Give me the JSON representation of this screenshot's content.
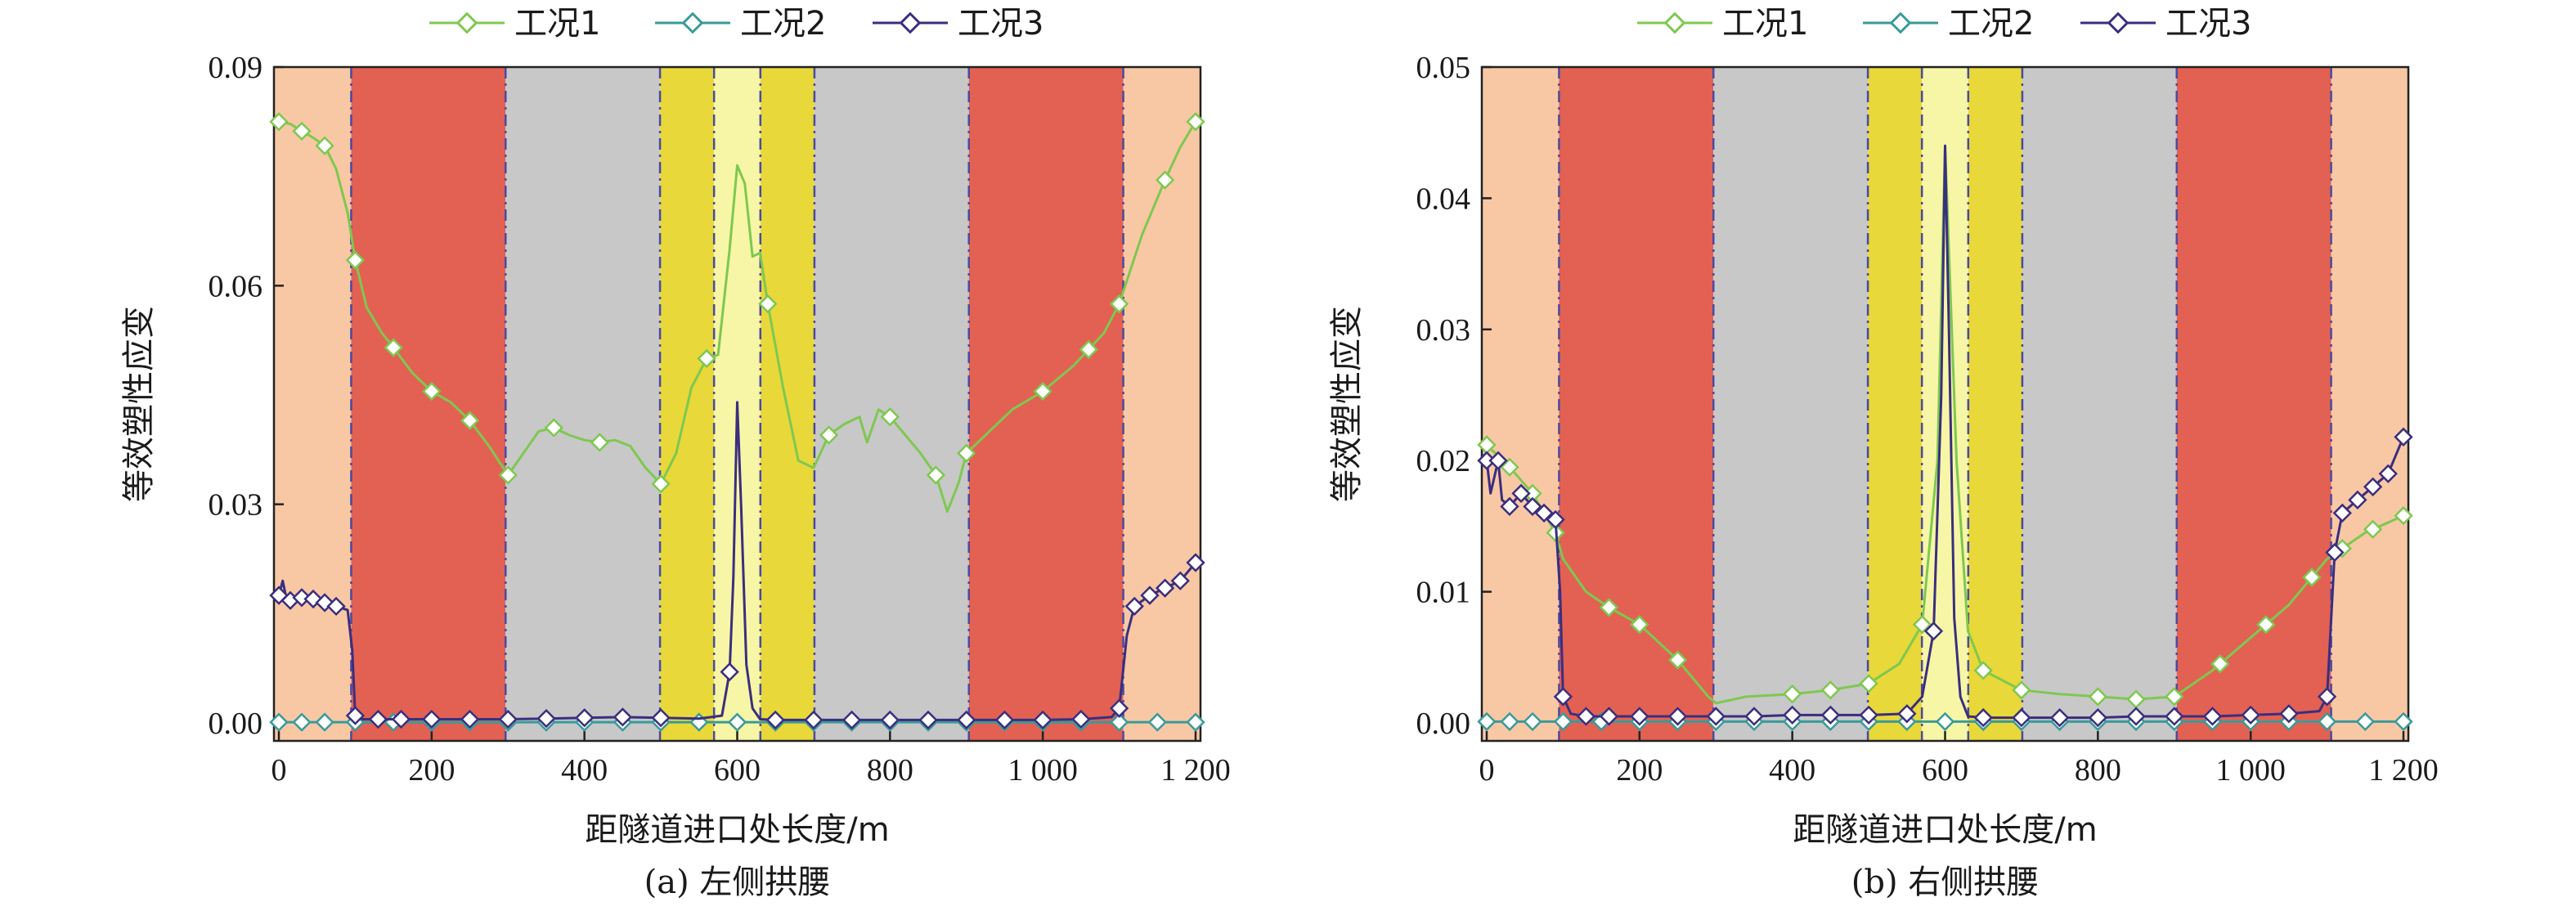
{
  "colors": {
    "tunnel_orange": "#f8c8a5",
    "tunnel_red": "#e26153",
    "tunnel_gray": "#c8c8c8",
    "tunnel_yellow": "#e8d83a",
    "tunnel_lightyellow": "#f6f6a6",
    "boundary_line": "#4a4aa0",
    "series_1": "#7ec850",
    "series_2": "#3a9a9a",
    "series_3": "#3b2e7e"
  },
  "chart_data": [
    {
      "type": "line",
      "title": "",
      "caption": "(a) 左侧拱腰",
      "xlabel": "距隧道进口处长度/m",
      "ylabel": "等效塑性应变",
      "xlim": [
        0,
        1200
      ],
      "ylim": [
        0,
        0.09
      ],
      "xticks": [
        0,
        200,
        400,
        600,
        800,
        1000,
        1200
      ],
      "xtick_labels": [
        "0",
        "200",
        "400",
        "600",
        "800",
        "1 000",
        "1 200"
      ],
      "yticks": [
        0,
        0.03,
        0.06,
        0.09
      ],
      "ytick_labels": [
        "0.00",
        "0.03",
        "0.06",
        "0.09"
      ],
      "legend": "top",
      "grid": false,
      "zones": [
        {
          "x0": 0,
          "x1": 100,
          "color": "tunnel_orange"
        },
        {
          "x0": 100,
          "x1": 300,
          "color": "tunnel_red"
        },
        {
          "x0": 300,
          "x1": 500,
          "color": "tunnel_gray"
        },
        {
          "x0": 500,
          "x1": 570,
          "color": "tunnel_yellow"
        },
        {
          "x0": 570,
          "x1": 630,
          "color": "tunnel_lightyellow"
        },
        {
          "x0": 630,
          "x1": 700,
          "color": "tunnel_yellow"
        },
        {
          "x0": 700,
          "x1": 900,
          "color": "tunnel_gray"
        },
        {
          "x0": 900,
          "x1": 1100,
          "color": "tunnel_red"
        },
        {
          "x0": 1100,
          "x1": 1200,
          "color": "tunnel_orange"
        }
      ],
      "boundaries": [
        100,
        300,
        500,
        570,
        630,
        700,
        900,
        1100
      ],
      "series": [
        {
          "name": "工况1",
          "color": "series_1",
          "x": [
            0,
            15,
            30,
            45,
            60,
            75,
            90,
            100,
            115,
            135,
            150,
            175,
            200,
            225,
            250,
            275,
            300,
            320,
            340,
            360,
            380,
            400,
            420,
            440,
            460,
            480,
            500,
            520,
            540,
            560,
            575,
            590,
            600,
            610,
            620,
            630,
            640,
            660,
            680,
            700,
            720,
            740,
            760,
            770,
            785,
            800,
            820,
            840,
            860,
            875,
            890,
            900,
            930,
            960,
            1000,
            1040,
            1080,
            1100,
            1130,
            1160,
            1180,
            1200
          ],
          "y": [
            0.0825,
            0.0822,
            0.0812,
            0.0803,
            0.0792,
            0.076,
            0.07,
            0.0635,
            0.057,
            0.0535,
            0.0515,
            0.048,
            0.0455,
            0.044,
            0.0415,
            0.038,
            0.034,
            0.037,
            0.04,
            0.0405,
            0.0395,
            0.0388,
            0.0385,
            0.0388,
            0.038,
            0.035,
            0.0328,
            0.037,
            0.046,
            0.05,
            0.0505,
            0.065,
            0.0765,
            0.074,
            0.064,
            0.0645,
            0.0575,
            0.046,
            0.036,
            0.035,
            0.0395,
            0.041,
            0.042,
            0.0385,
            0.043,
            0.042,
            0.0395,
            0.037,
            0.034,
            0.029,
            0.033,
            0.037,
            0.04,
            0.043,
            0.0455,
            0.049,
            0.0535,
            0.0575,
            0.067,
            0.0745,
            0.079,
            0.0825
          ],
          "markers_x": [
            0,
            30,
            60,
            100,
            150,
            200,
            250,
            300,
            360,
            420,
            500,
            560,
            640,
            720,
            800,
            860,
            900,
            1000,
            1060,
            1100,
            1160,
            1200
          ]
        },
        {
          "name": "工况2",
          "color": "series_2",
          "x": [
            0,
            30,
            60,
            100,
            150,
            200,
            250,
            300,
            350,
            400,
            450,
            500,
            550,
            600,
            650,
            700,
            750,
            800,
            850,
            900,
            950,
            1000,
            1050,
            1100,
            1150,
            1200
          ],
          "y": [
            0.0001,
            0.0001,
            0.0001,
            0.0001,
            0.0001,
            0.0001,
            0.0001,
            0.0001,
            0.0001,
            0.0001,
            0.0001,
            0.0001,
            0.0001,
            0.0001,
            0.0001,
            0.0001,
            0.0001,
            0.0001,
            0.0001,
            0.0001,
            0.0001,
            0.0001,
            0.0001,
            0.0001,
            0.0001,
            0.0001
          ],
          "markers_x": [
            0,
            30,
            60,
            100,
            150,
            200,
            250,
            300,
            350,
            400,
            450,
            500,
            550,
            600,
            650,
            700,
            750,
            800,
            850,
            900,
            950,
            1000,
            1050,
            1100,
            1150,
            1200
          ]
        },
        {
          "name": "工况3",
          "color": "series_3",
          "x": [
            0,
            5,
            10,
            15,
            20,
            30,
            45,
            60,
            75,
            90,
            96,
            100,
            110,
            130,
            150,
            175,
            200,
            250,
            300,
            350,
            400,
            450,
            500,
            550,
            580,
            590,
            595,
            600,
            605,
            612,
            620,
            630,
            650,
            700,
            750,
            800,
            850,
            900,
            950,
            1000,
            1050,
            1090,
            1100,
            1110,
            1120,
            1140,
            1160,
            1180,
            1200
          ],
          "y": [
            0.0175,
            0.0195,
            0.017,
            0.0168,
            0.0165,
            0.0172,
            0.017,
            0.0165,
            0.016,
            0.0155,
            0.01,
            0.001,
            0.0005,
            0.0005,
            0.0005,
            0.0005,
            0.0005,
            0.0005,
            0.0005,
            0.0006,
            0.0007,
            0.0008,
            0.0007,
            0.0006,
            0.001,
            0.007,
            0.02,
            0.044,
            0.03,
            0.008,
            0.002,
            0.0005,
            0.0004,
            0.0004,
            0.0004,
            0.0004,
            0.0004,
            0.0004,
            0.0004,
            0.0004,
            0.0005,
            0.0008,
            0.002,
            0.012,
            0.016,
            0.0175,
            0.0185,
            0.0195,
            0.022
          ],
          "markers_x": [
            0,
            15,
            30,
            45,
            60,
            75,
            100,
            130,
            160,
            200,
            250,
            300,
            350,
            400,
            450,
            500,
            590,
            650,
            700,
            750,
            800,
            850,
            900,
            950,
            1000,
            1050,
            1100,
            1120,
            1140,
            1160,
            1180,
            1200
          ]
        }
      ]
    },
    {
      "type": "line",
      "title": "",
      "caption": "(b) 右侧拱腰",
      "xlabel": "距隧道进口处长度/m",
      "ylabel": "等效塑性应变",
      "xlim": [
        0,
        1200
      ],
      "ylim": [
        0,
        0.05
      ],
      "xticks": [
        0,
        200,
        400,
        600,
        800,
        1000,
        1200
      ],
      "xtick_labels": [
        "0",
        "200",
        "400",
        "600",
        "800",
        "1 000",
        "1 200"
      ],
      "yticks": [
        0,
        0.01,
        0.02,
        0.03,
        0.04,
        0.05
      ],
      "ytick_labels": [
        "0.00",
        "0.01",
        "0.02",
        "0.03",
        "0.04",
        "0.05"
      ],
      "legend": "top",
      "grid": false,
      "zones": [
        {
          "x0": 0,
          "x1": 100,
          "color": "tunnel_orange"
        },
        {
          "x0": 100,
          "x1": 300,
          "color": "tunnel_red"
        },
        {
          "x0": 300,
          "x1": 500,
          "color": "tunnel_gray"
        },
        {
          "x0": 500,
          "x1": 570,
          "color": "tunnel_yellow"
        },
        {
          "x0": 570,
          "x1": 630,
          "color": "tunnel_lightyellow"
        },
        {
          "x0": 630,
          "x1": 700,
          "color": "tunnel_yellow"
        },
        {
          "x0": 700,
          "x1": 900,
          "color": "tunnel_gray"
        },
        {
          "x0": 900,
          "x1": 1100,
          "color": "tunnel_red"
        },
        {
          "x0": 1100,
          "x1": 1200,
          "color": "tunnel_orange"
        }
      ],
      "boundaries": [
        100,
        300,
        500,
        570,
        630,
        700,
        900,
        1100
      ],
      "series": [
        {
          "name": "工况1",
          "color": "series_1",
          "x": [
            0,
            30,
            60,
            90,
            100,
            130,
            160,
            200,
            250,
            290,
            300,
            340,
            400,
            450,
            500,
            540,
            570,
            590,
            600,
            615,
            630,
            650,
            700,
            750,
            800,
            850,
            900,
            950,
            1000,
            1050,
            1100,
            1150,
            1200
          ],
          "y": [
            0.0212,
            0.0195,
            0.0175,
            0.0145,
            0.0125,
            0.01,
            0.0088,
            0.0075,
            0.0048,
            0.002,
            0.0015,
            0.002,
            0.0022,
            0.0025,
            0.003,
            0.0045,
            0.0075,
            0.02,
            0.044,
            0.02,
            0.007,
            0.004,
            0.0025,
            0.0022,
            0.002,
            0.0018,
            0.002,
            0.004,
            0.0065,
            0.009,
            0.0125,
            0.0145,
            0.0158
          ],
          "markers_x": [
            0,
            30,
            60,
            90,
            160,
            200,
            250,
            400,
            450,
            500,
            570,
            650,
            700,
            800,
            850,
            900,
            960,
            1020,
            1080,
            1120,
            1160,
            1200
          ]
        },
        {
          "name": "工况2",
          "color": "series_2",
          "x": [
            0,
            30,
            60,
            100,
            150,
            200,
            250,
            300,
            350,
            400,
            450,
            500,
            550,
            600,
            650,
            700,
            750,
            800,
            850,
            900,
            950,
            1000,
            1050,
            1100,
            1150,
            1200
          ],
          "y": [
            0.0001,
            0.0001,
            0.0001,
            0.0001,
            0.0001,
            0.0001,
            0.0001,
            0.0001,
            0.0001,
            0.0001,
            0.0001,
            0.0001,
            0.0001,
            0.0001,
            0.0001,
            0.0001,
            0.0001,
            0.0001,
            0.0001,
            0.0001,
            0.0001,
            0.0001,
            0.0001,
            0.0001,
            0.0001,
            0.0001
          ],
          "markers_x": [
            0,
            30,
            60,
            100,
            150,
            200,
            250,
            300,
            350,
            400,
            450,
            500,
            550,
            600,
            650,
            700,
            750,
            800,
            850,
            900,
            950,
            1000,
            1050,
            1100,
            1150,
            1200
          ]
        },
        {
          "name": "工况3",
          "color": "series_3",
          "x": [
            0,
            5,
            15,
            20,
            30,
            45,
            60,
            75,
            90,
            96,
            100,
            110,
            130,
            160,
            200,
            250,
            300,
            350,
            400,
            450,
            500,
            550,
            570,
            585,
            595,
            600,
            605,
            612,
            620,
            630,
            650,
            700,
            750,
            800,
            850,
            900,
            950,
            1000,
            1050,
            1090,
            1100,
            1110,
            1120,
            1140,
            1160,
            1180,
            1200
          ],
          "y": [
            0.02,
            0.0175,
            0.02,
            0.017,
            0.0165,
            0.0175,
            0.0165,
            0.016,
            0.0155,
            0.01,
            0.002,
            0.0007,
            0.0005,
            0.0005,
            0.0005,
            0.0005,
            0.0005,
            0.0005,
            0.0006,
            0.0006,
            0.0006,
            0.0007,
            0.002,
            0.007,
            0.025,
            0.044,
            0.03,
            0.008,
            0.002,
            0.0005,
            0.0004,
            0.0004,
            0.0004,
            0.0004,
            0.0005,
            0.0005,
            0.0005,
            0.0006,
            0.0007,
            0.0009,
            0.002,
            0.013,
            0.016,
            0.017,
            0.018,
            0.019,
            0.0218
          ],
          "markers_x": [
            0,
            15,
            30,
            45,
            60,
            75,
            90,
            100,
            130,
            160,
            200,
            250,
            300,
            350,
            400,
            450,
            500,
            550,
            585,
            650,
            700,
            750,
            800,
            850,
            900,
            950,
            1000,
            1050,
            1100,
            1110,
            1120,
            1140,
            1160,
            1180,
            1200
          ]
        }
      ]
    }
  ]
}
